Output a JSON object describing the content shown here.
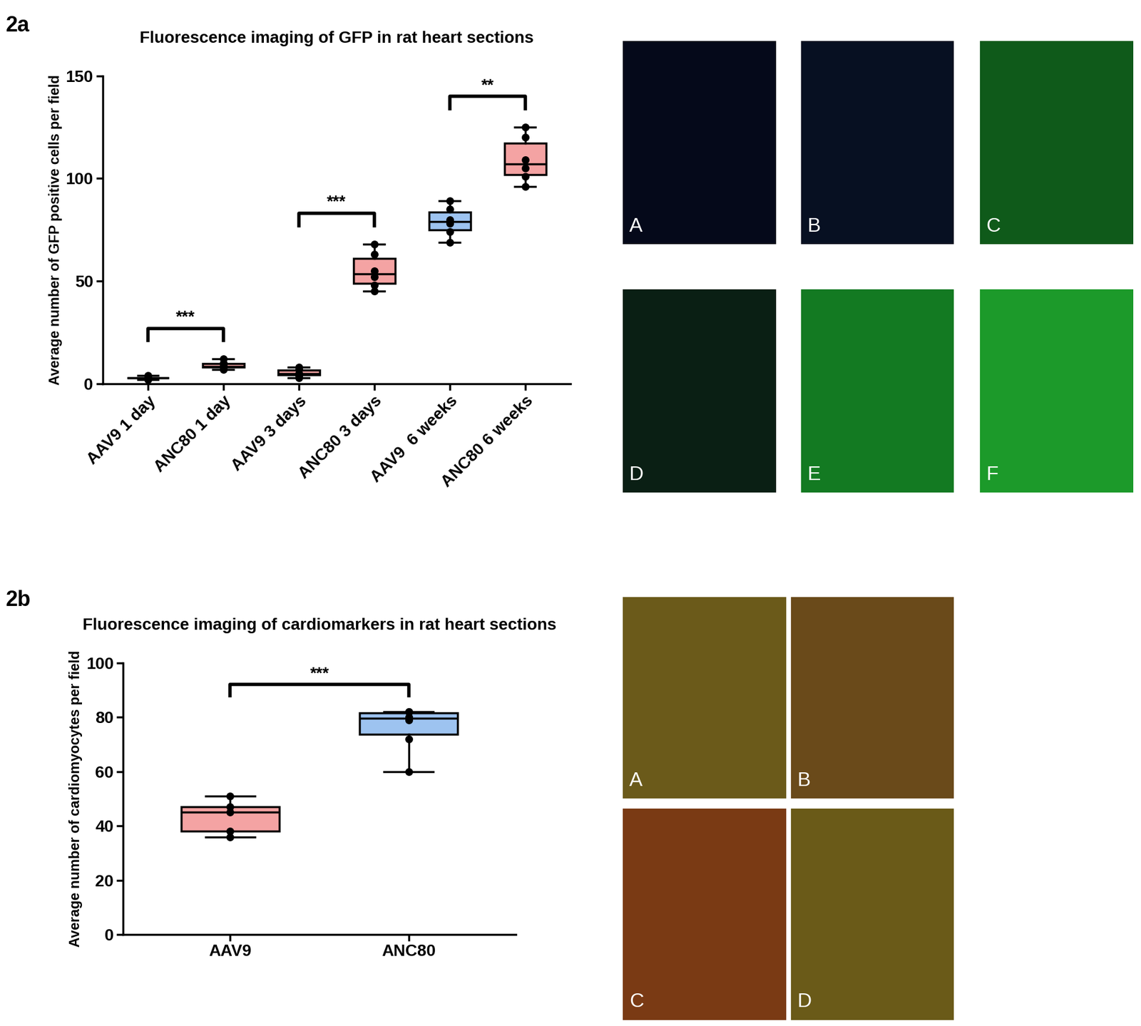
{
  "chart_data": [
    {
      "type": "box",
      "panel": "2a",
      "title": "Fluorescence imaging of GFP in rat heart sections",
      "y_label": "Average number of GFP positive cells per field",
      "categories": [
        "AAV9 1 day",
        "ANC80 1 day",
        "AAV9 3 days",
        "ANC80 3 days",
        "AAV9  6 weeks",
        "ANC80 6 weeks"
      ],
      "values": [
        [
          2,
          3,
          3,
          3,
          4,
          3
        ],
        [
          7,
          8,
          8,
          9,
          10,
          12
        ],
        [
          3,
          4,
          5,
          5,
          7,
          8
        ],
        [
          45,
          48,
          52,
          55,
          63,
          68
        ],
        [
          69,
          74,
          78,
          80,
          85,
          89
        ],
        [
          96,
          101,
          105,
          109,
          120,
          125
        ]
      ],
      "colors": [
        "#f4a3a3",
        "#f4a3a3",
        "#f4a3a3",
        "#f4a3a3",
        "#9dc3f0",
        "#f4a3a3"
      ],
      "ylim": [
        0,
        150
      ],
      "yticks": [
        0,
        50,
        100,
        150
      ],
      "grid": false,
      "annotations": [
        {
          "from": "AAV9 1 day",
          "to": "ANC80 1 day",
          "text": "***"
        },
        {
          "from": "AAV9 3 days",
          "to": "ANC80 3 days",
          "text": "***"
        },
        {
          "from": "AAV9  6 weeks",
          "to": "ANC80 6 weeks",
          "text": "**"
        }
      ]
    },
    {
      "type": "box",
      "panel": "2b",
      "title": "Fluorescence imaging of cardiomarkers in rat heart sections",
      "y_label": "Average number of cardiomyocytes per field",
      "categories": [
        "AAV9",
        "ANC80"
      ],
      "values": [
        [
          36,
          38,
          45,
          47,
          51
        ],
        [
          60,
          72,
          79,
          80,
          82,
          82
        ]
      ],
      "colors": [
        "#f4a3a3",
        "#9dc3f0"
      ],
      "ylim": [
        0,
        100
      ],
      "yticks": [
        0,
        20,
        40,
        60,
        80,
        100
      ],
      "grid": false,
      "annotations": [
        {
          "from": "AAV9",
          "to": "ANC80",
          "text": "***"
        }
      ]
    }
  ],
  "image_panels": [
    {
      "panel": "2a",
      "labels": [
        "A",
        "B",
        "C",
        "D",
        "E",
        "F"
      ],
      "colors": [
        "#05091a",
        "#071022",
        "#0f5a1a",
        "#0a1f14",
        "#137a22",
        "#1c9a2a"
      ]
    },
    {
      "panel": "2b",
      "labels": [
        "A",
        "B",
        "C",
        "D"
      ],
      "colors": [
        "#6b5a1a",
        "#6a4a1a",
        "#7a3a14",
        "#6a5a18"
      ]
    }
  ]
}
